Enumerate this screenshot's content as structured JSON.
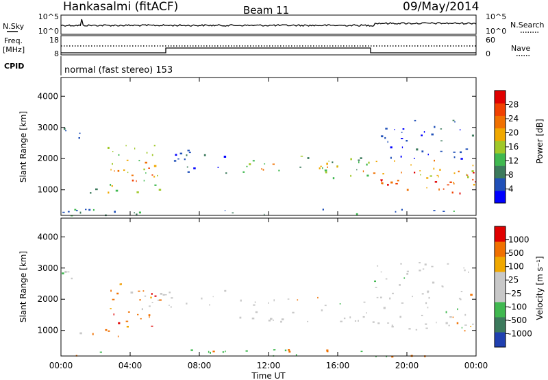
{
  "header": {
    "station": "Hankasalmi (fitACF)",
    "beam": "Beam 11",
    "date": "09/May/2014"
  },
  "top_panels": {
    "nsky_label": "N.Sky",
    "nsky_ticks": [
      "10^5",
      "10^0"
    ],
    "nsearch_label": "N.Search",
    "nsearch_ticks": [
      "10^5",
      "10^0"
    ],
    "freq_label_1": "Freq.",
    "freq_label_2": "[MHz]",
    "freq_ticks": [
      "18",
      "8"
    ],
    "nave_label": "Nave",
    "nave_ticks": [
      "60",
      "0"
    ],
    "cpid_label": "CPID",
    "cpid_text": "normal (fast stereo) 153"
  },
  "x_axis": {
    "label": "Time UT",
    "tick_labels": [
      "00:00",
      "04:00",
      "08:00",
      "12:00",
      "16:00",
      "20:00",
      "00:00"
    ],
    "range_hours": [
      0,
      24
    ]
  },
  "chart_data": [
    {
      "type": "heatmap",
      "variable": "power",
      "ylabel": "Slant Range [km]",
      "y_ticks": [
        1000,
        2000,
        3000,
        4000
      ],
      "ylim": [
        180,
        4600
      ],
      "colorbar": {
        "label": "Power [dB]",
        "tick_labels": [
          "28",
          "24",
          "20",
          "16",
          "12",
          "8",
          "4"
        ],
        "colors": [
          "#0000ff",
          "#2050b8",
          "#3c7a5c",
          "#40b850",
          "#a0c828",
          "#f0a800",
          "#f07000",
          "#f04000",
          "#e00000"
        ]
      },
      "regions": [
        {
          "t": [
            0.0,
            1.5
          ],
          "r": [
            2400,
            3000
          ],
          "level": 1
        },
        {
          "t": [
            0.0,
            2.5
          ],
          "r": [
            900,
            1100
          ],
          "level": 1
        },
        {
          "t": [
            2.5,
            6.0
          ],
          "r": [
            900,
            2500
          ],
          "level": 4
        },
        {
          "t": [
            3.0,
            5.5
          ],
          "r": [
            1300,
            2200
          ],
          "level": 6
        },
        {
          "t": [
            6.0,
            10.0
          ],
          "r": [
            1500,
            2300
          ],
          "level": 1
        },
        {
          "t": [
            10.0,
            18.0
          ],
          "r": [
            1400,
            2100
          ],
          "level": 3
        },
        {
          "t": [
            11.5,
            18.0
          ],
          "r": [
            1600,
            1900
          ],
          "level": 6
        },
        {
          "t": [
            18.0,
            24.0
          ],
          "r": [
            2000,
            3300
          ],
          "level": 1
        },
        {
          "t": [
            18.0,
            24.0
          ],
          "r": [
            1000,
            2000
          ],
          "level": 5
        },
        {
          "t": [
            18.0,
            24.0
          ],
          "r": [
            1000,
            1600
          ],
          "level": 7
        },
        {
          "t": [
            22.5,
            24.0
          ],
          "r": [
            900,
            1400
          ],
          "level": 8
        },
        {
          "t": [
            0.0,
            24.0
          ],
          "r": [
            180,
            400
          ],
          "level": 2
        }
      ]
    },
    {
      "type": "heatmap",
      "variable": "velocity",
      "ylabel": "Slant Range [km]",
      "y_ticks": [
        1000,
        2000,
        3000,
        4000
      ],
      "ylim": [
        180,
        4600
      ],
      "colorbar": {
        "label": "Velocity [m s⁻¹]",
        "tick_labels": [
          "1000",
          "500",
          "100",
          "25",
          "-25",
          "-100",
          "-500",
          "-1000"
        ],
        "colors": [
          "#2040b0",
          "#3c7a5c",
          "#40b850",
          "#c8c8c8",
          "#c8c8c8",
          "#f0a800",
          "#f07000",
          "#e00000"
        ]
      },
      "regions": [
        {
          "t": [
            0.0,
            1.5
          ],
          "r": [
            2400,
            3000
          ],
          "class": "ground"
        },
        {
          "t": [
            0.0,
            2.5
          ],
          "r": [
            900,
            1100
          ],
          "class": "ground"
        },
        {
          "t": [
            2.5,
            5.5
          ],
          "r": [
            800,
            2600
          ],
          "class": "away"
        },
        {
          "t": [
            4.0,
            10.0
          ],
          "r": [
            1600,
            2300
          ],
          "class": "ground"
        },
        {
          "t": [
            10.0,
            18.0
          ],
          "r": [
            1300,
            2100
          ],
          "class": "ground"
        },
        {
          "t": [
            18.0,
            24.0
          ],
          "r": [
            1000,
            3200
          ],
          "class": "ground"
        },
        {
          "t": [
            22.5,
            24.0
          ],
          "r": [
            900,
            1500
          ],
          "class": "away"
        },
        {
          "t": [
            0.0,
            24.0
          ],
          "r": [
            180,
            400
          ],
          "class": "toward"
        }
      ]
    }
  ]
}
